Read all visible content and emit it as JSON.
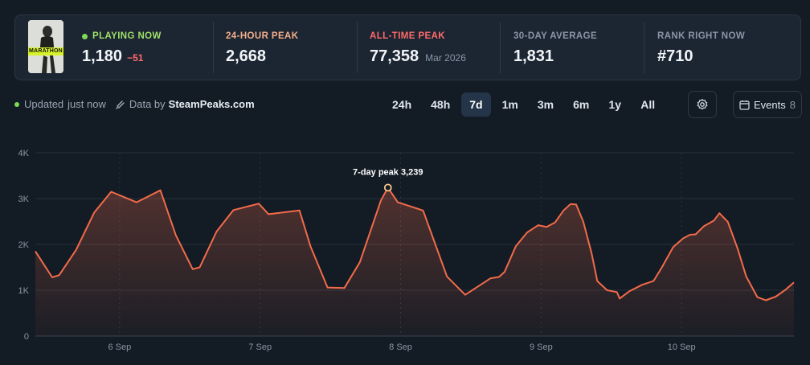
{
  "game": {
    "cover_text": "MARATHON"
  },
  "stats": {
    "playing_now": {
      "label": "Playing now",
      "value": "1,180",
      "delta": "−51"
    },
    "peak_24h": {
      "label": "24-hour peak",
      "value": "2,668"
    },
    "all_time_peak": {
      "label": "All-time peak",
      "value": "77,358",
      "date": "Mar 2026"
    },
    "avg_30d": {
      "label": "30-day average",
      "value": "1,831"
    },
    "rank": {
      "label": "Rank right now",
      "value": "#710"
    }
  },
  "toolbar": {
    "updated_label": "Updated",
    "updated_time": "just now",
    "data_by_label": "Data by",
    "data_source": "SteamPeaks.com",
    "ranges": [
      "24h",
      "48h",
      "7d",
      "1m",
      "3m",
      "6m",
      "1y",
      "All"
    ],
    "active_range": "7d",
    "events_label": "Events",
    "events_count": "8"
  },
  "colors": {
    "line": "#f26b4a",
    "live": "#7ed957",
    "peak_24h_label": "#f5b08c",
    "all_time_label": "#ff6b6b",
    "delta": "#ff6b6b",
    "peak_marker": "#f5c38a"
  },
  "chart_data": {
    "type": "area",
    "x_ticks": [
      {
        "label": "6 Sep",
        "t": 0.6
      },
      {
        "label": "7 Sep",
        "t": 1.6
      },
      {
        "label": "8 Sep",
        "t": 2.6
      },
      {
        "label": "9 Sep",
        "t": 3.6
      },
      {
        "label": "10 Sep",
        "t": 4.6
      }
    ],
    "y_ticks": [
      {
        "label": "0",
        "value": 0
      },
      {
        "label": "1K",
        "value": 1000
      },
      {
        "label": "2K",
        "value": 2000
      },
      {
        "label": "3K",
        "value": 3000
      },
      {
        "label": "4K",
        "value": 4000
      }
    ],
    "ylim": [
      0,
      4000
    ],
    "xlim": [
      0,
      5.4
    ],
    "annotation": {
      "text": "7-day peak 3,239",
      "t": 2.51,
      "value": 3239
    },
    "series": [
      {
        "points": [
          [
            0.0,
            1850
          ],
          [
            0.12,
            1280
          ],
          [
            0.17,
            1330
          ],
          [
            0.29,
            1880
          ],
          [
            0.42,
            2700
          ],
          [
            0.54,
            3150
          ],
          [
            0.72,
            2920
          ],
          [
            0.89,
            3180
          ],
          [
            1.0,
            2200
          ],
          [
            1.12,
            1460
          ],
          [
            1.17,
            1500
          ],
          [
            1.29,
            2280
          ],
          [
            1.41,
            2750
          ],
          [
            1.59,
            2890
          ],
          [
            1.66,
            2660
          ],
          [
            1.88,
            2740
          ],
          [
            1.96,
            1950
          ],
          [
            2.08,
            1060
          ],
          [
            2.2,
            1050
          ],
          [
            2.31,
            1610
          ],
          [
            2.46,
            2960
          ],
          [
            2.51,
            3239
          ],
          [
            2.58,
            2920
          ],
          [
            2.76,
            2740
          ],
          [
            2.93,
            1300
          ],
          [
            3.06,
            900
          ],
          [
            3.24,
            1260
          ],
          [
            3.3,
            1290
          ],
          [
            3.34,
            1400
          ],
          [
            3.42,
            1960
          ],
          [
            3.5,
            2260
          ],
          [
            3.58,
            2420
          ],
          [
            3.64,
            2380
          ],
          [
            3.7,
            2480
          ],
          [
            3.76,
            2740
          ],
          [
            3.81,
            2880
          ],
          [
            3.85,
            2870
          ],
          [
            3.9,
            2500
          ],
          [
            3.96,
            1800
          ],
          [
            4.0,
            1200
          ],
          [
            4.07,
            1000
          ],
          [
            4.14,
            960
          ],
          [
            4.16,
            820
          ],
          [
            4.23,
            980
          ],
          [
            4.32,
            1120
          ],
          [
            4.4,
            1200
          ],
          [
            4.46,
            1500
          ],
          [
            4.54,
            1940
          ],
          [
            4.61,
            2130
          ],
          [
            4.66,
            2210
          ],
          [
            4.7,
            2220
          ],
          [
            4.76,
            2400
          ],
          [
            4.83,
            2520
          ],
          [
            4.87,
            2680
          ],
          [
            4.93,
            2490
          ],
          [
            5.0,
            1900
          ],
          [
            5.06,
            1300
          ],
          [
            5.14,
            850
          ],
          [
            5.2,
            780
          ],
          [
            5.27,
            860
          ],
          [
            5.34,
            1010
          ],
          [
            5.4,
            1170
          ]
        ]
      }
    ]
  }
}
